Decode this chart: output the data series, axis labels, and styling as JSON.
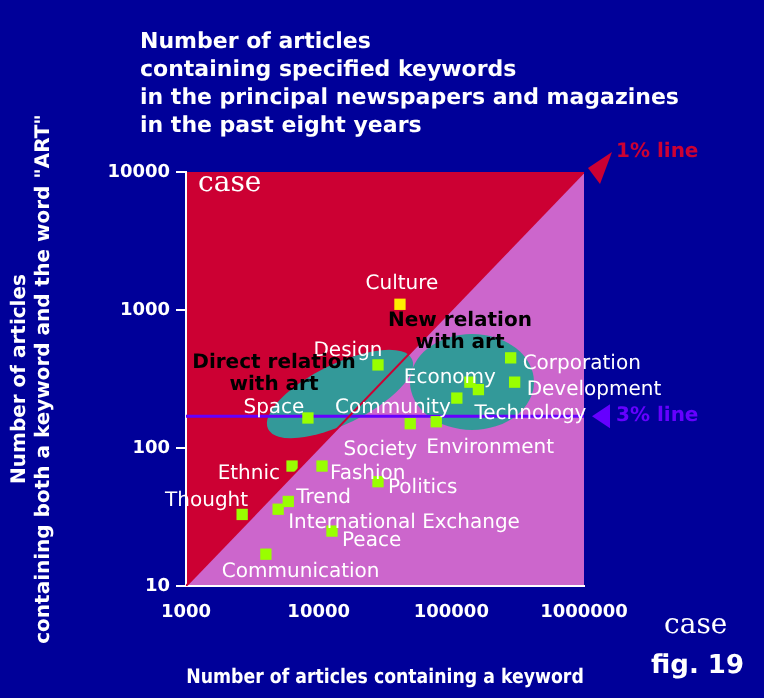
{
  "chart_data": {
    "type": "scatter",
    "title": "Number of articles\ncontaining specified keywords\nin the principal newspapers and magazines\nin the past eight years",
    "xlabel": "Number of articles containing a keyword",
    "ylabel": "Number of articles\ncontaining both a keyword and the word \"ART\"",
    "log": "xy",
    "xlim": [
      1000,
      1000000
    ],
    "ylim": [
      10,
      10000
    ],
    "xticks": [
      1000,
      10000,
      100000,
      1000000
    ],
    "yticks": [
      10,
      100,
      1000,
      10000
    ],
    "grid": false,
    "legend": false,
    "marker": "square",
    "series": [
      {
        "name": "1% line",
        "type": "line",
        "marker": "none",
        "x": [
          1000,
          1000000
        ],
        "values": [
          10,
          10000
        ],
        "color": "#cc0033"
      },
      {
        "name": "Culture",
        "x": [
          41000
        ],
        "values": [
          1100
        ],
        "color": "#ffee00"
      },
      {
        "name": "Design",
        "x": [
          28000
        ],
        "values": [
          400
        ],
        "color": "#99ff00"
      },
      {
        "name": "Space",
        "x": [
          8300
        ],
        "values": [
          165
        ],
        "color": "#99ff00"
      },
      {
        "name": "Community",
        "x": [
          110000
        ],
        "values": [
          230
        ],
        "color": "#99ff00"
      },
      {
        "name": "Economy",
        "x": [
          138000
        ],
        "values": [
          300
        ],
        "color": "#99ff00"
      },
      {
        "name": "Technology",
        "x": [
          160000
        ],
        "values": [
          265
        ],
        "color": "#99ff00"
      },
      {
        "name": "Corporation",
        "x": [
          280000
        ],
        "values": [
          450
        ],
        "color": "#99ff00"
      },
      {
        "name": "Development",
        "x": [
          300000
        ],
        "values": [
          300
        ],
        "color": "#99ff00"
      },
      {
        "name": "Society",
        "x": [
          49000
        ],
        "values": [
          150
        ],
        "color": "#99ff00"
      },
      {
        "name": "Environment",
        "x": [
          77000
        ],
        "values": [
          155
        ],
        "color": "#99ff00"
      },
      {
        "name": "Ethnic",
        "x": [
          6300
        ],
        "values": [
          74
        ],
        "color": "#99ff00"
      },
      {
        "name": "Fashion",
        "x": [
          10600
        ],
        "values": [
          74
        ],
        "color": "#99ff00"
      },
      {
        "name": "Thought",
        "x": [
          2650
        ],
        "values": [
          33
        ],
        "color": "#99ff00"
      },
      {
        "name": "Trend",
        "x": [
          5900
        ],
        "values": [
          41
        ],
        "color": "#99ff00"
      },
      {
        "name": "International Exchange",
        "x": [
          4950
        ],
        "values": [
          36
        ],
        "color": "#99ff00"
      },
      {
        "name": "Politics",
        "x": [
          28000
        ],
        "values": [
          57
        ],
        "color": "#99ff00"
      },
      {
        "name": "Peace",
        "x": [
          12600
        ],
        "values": [
          25
        ],
        "color": "#99ff00"
      },
      {
        "name": "Communication",
        "x": [
          4000
        ],
        "values": [
          17
        ],
        "color": "#99ff00"
      }
    ],
    "ref_lines": [
      {
        "axis": "y",
        "value": 170,
        "label": "3% line",
        "color": "#6600ff"
      }
    ],
    "annotations": [
      "Direct relation\nwith art",
      "New relation\nwith art",
      "case",
      "case",
      "fig. 19"
    ]
  }
}
